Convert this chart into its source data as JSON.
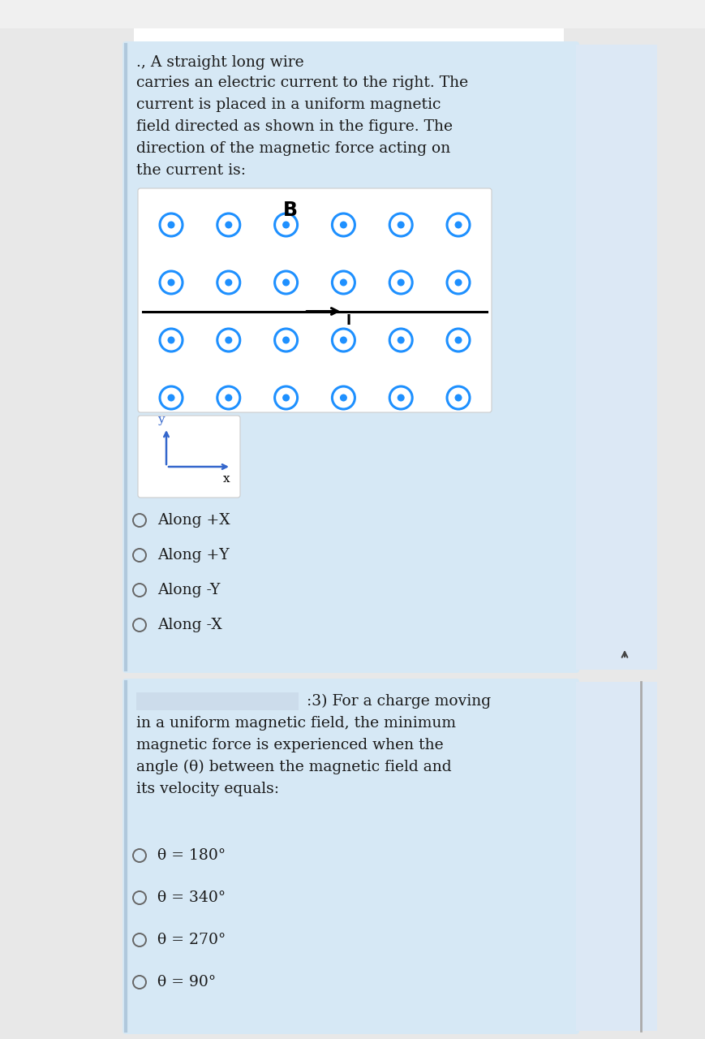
{
  "panel_bg": "#d6e8f5",
  "white_bg": "#ffffff",
  "outer_bg": "#e8e8e8",
  "q1_text_line1": "., A straight long wire",
  "q1_text_line2": "carries an electric current to the right. The",
  "q1_text_line3": "current is placed in a uniform magnetic",
  "q1_text_line4": "field directed as shown in the figure. The",
  "q1_text_line5": "direction of the magnetic force acting on",
  "q1_text_line6": "the current is:",
  "q2_text_line1": ":3) For a charge moving",
  "q2_text_line2": "in a uniform magnetic field, the minimum",
  "q2_text_line3": "magnetic force is experienced when the",
  "q2_text_line4": "angle (θ) between the magnetic field and",
  "q2_text_line5": "its velocity equals:",
  "dot_color": "#1e90ff",
  "B_label": "B",
  "options_q1": [
    "Along +X",
    "Along +Y",
    "Along -Y",
    "Along -X"
  ],
  "options_q2": [
    "θ = 180°",
    "θ = 340°",
    "θ = 270°",
    "θ = 90°"
  ],
  "radio_color": "#666666",
  "text_color": "#1a1a1a",
  "axis_color": "#3366cc",
  "n_cols": 6,
  "n_rows": 4
}
